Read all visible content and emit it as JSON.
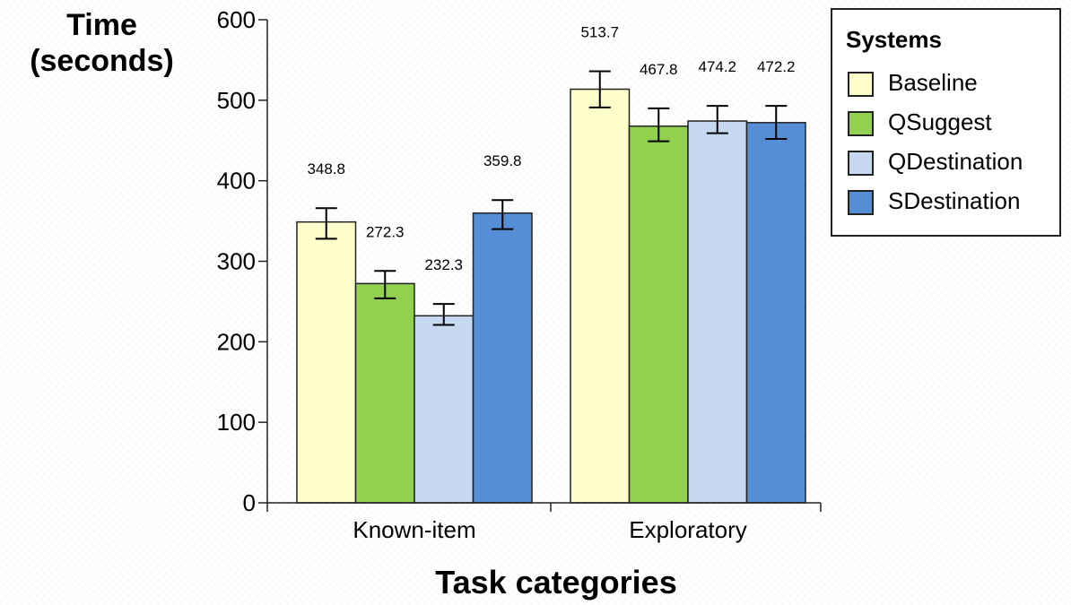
{
  "y_title_line1": "Time",
  "y_title_line2": "(seconds)",
  "x_title": "Task categories",
  "legend_title": "Systems",
  "chart_data": {
    "type": "bar",
    "categories": [
      "Known-item",
      "Exploratory"
    ],
    "series": [
      {
        "name": "Baseline",
        "color": "#ffffcc",
        "values": [
          348.8,
          513.7
        ],
        "error_low": [
          328,
          491
        ],
        "error_high": [
          366,
          536
        ]
      },
      {
        "name": "QSuggest",
        "color": "#92d050",
        "values": [
          272.3,
          467.8
        ],
        "error_low": [
          254,
          449
        ],
        "error_high": [
          288,
          490
        ]
      },
      {
        "name": "QDestination",
        "color": "#c6d9f1",
        "values": [
          232.3,
          474.2
        ],
        "error_low": [
          221,
          459
        ],
        "error_high": [
          247,
          493
        ]
      },
      {
        "name": "SDestination",
        "color": "#558ed5",
        "values": [
          359.8,
          472.2
        ],
        "error_low": [
          340,
          452
        ],
        "error_high": [
          376,
          493
        ]
      }
    ],
    "data_labels": [
      [
        "348.8",
        "513.7"
      ],
      [
        "272.3",
        "467.8"
      ],
      [
        "232.3",
        "474.2"
      ],
      [
        "359.8",
        "472.2"
      ]
    ],
    "ylabel": "Time (seconds)",
    "xlabel": "Task categories",
    "ylim": [
      0,
      600
    ],
    "yticks": [
      0,
      100,
      200,
      300,
      400,
      500,
      600
    ],
    "legend_position": "top-right",
    "grid": false
  }
}
